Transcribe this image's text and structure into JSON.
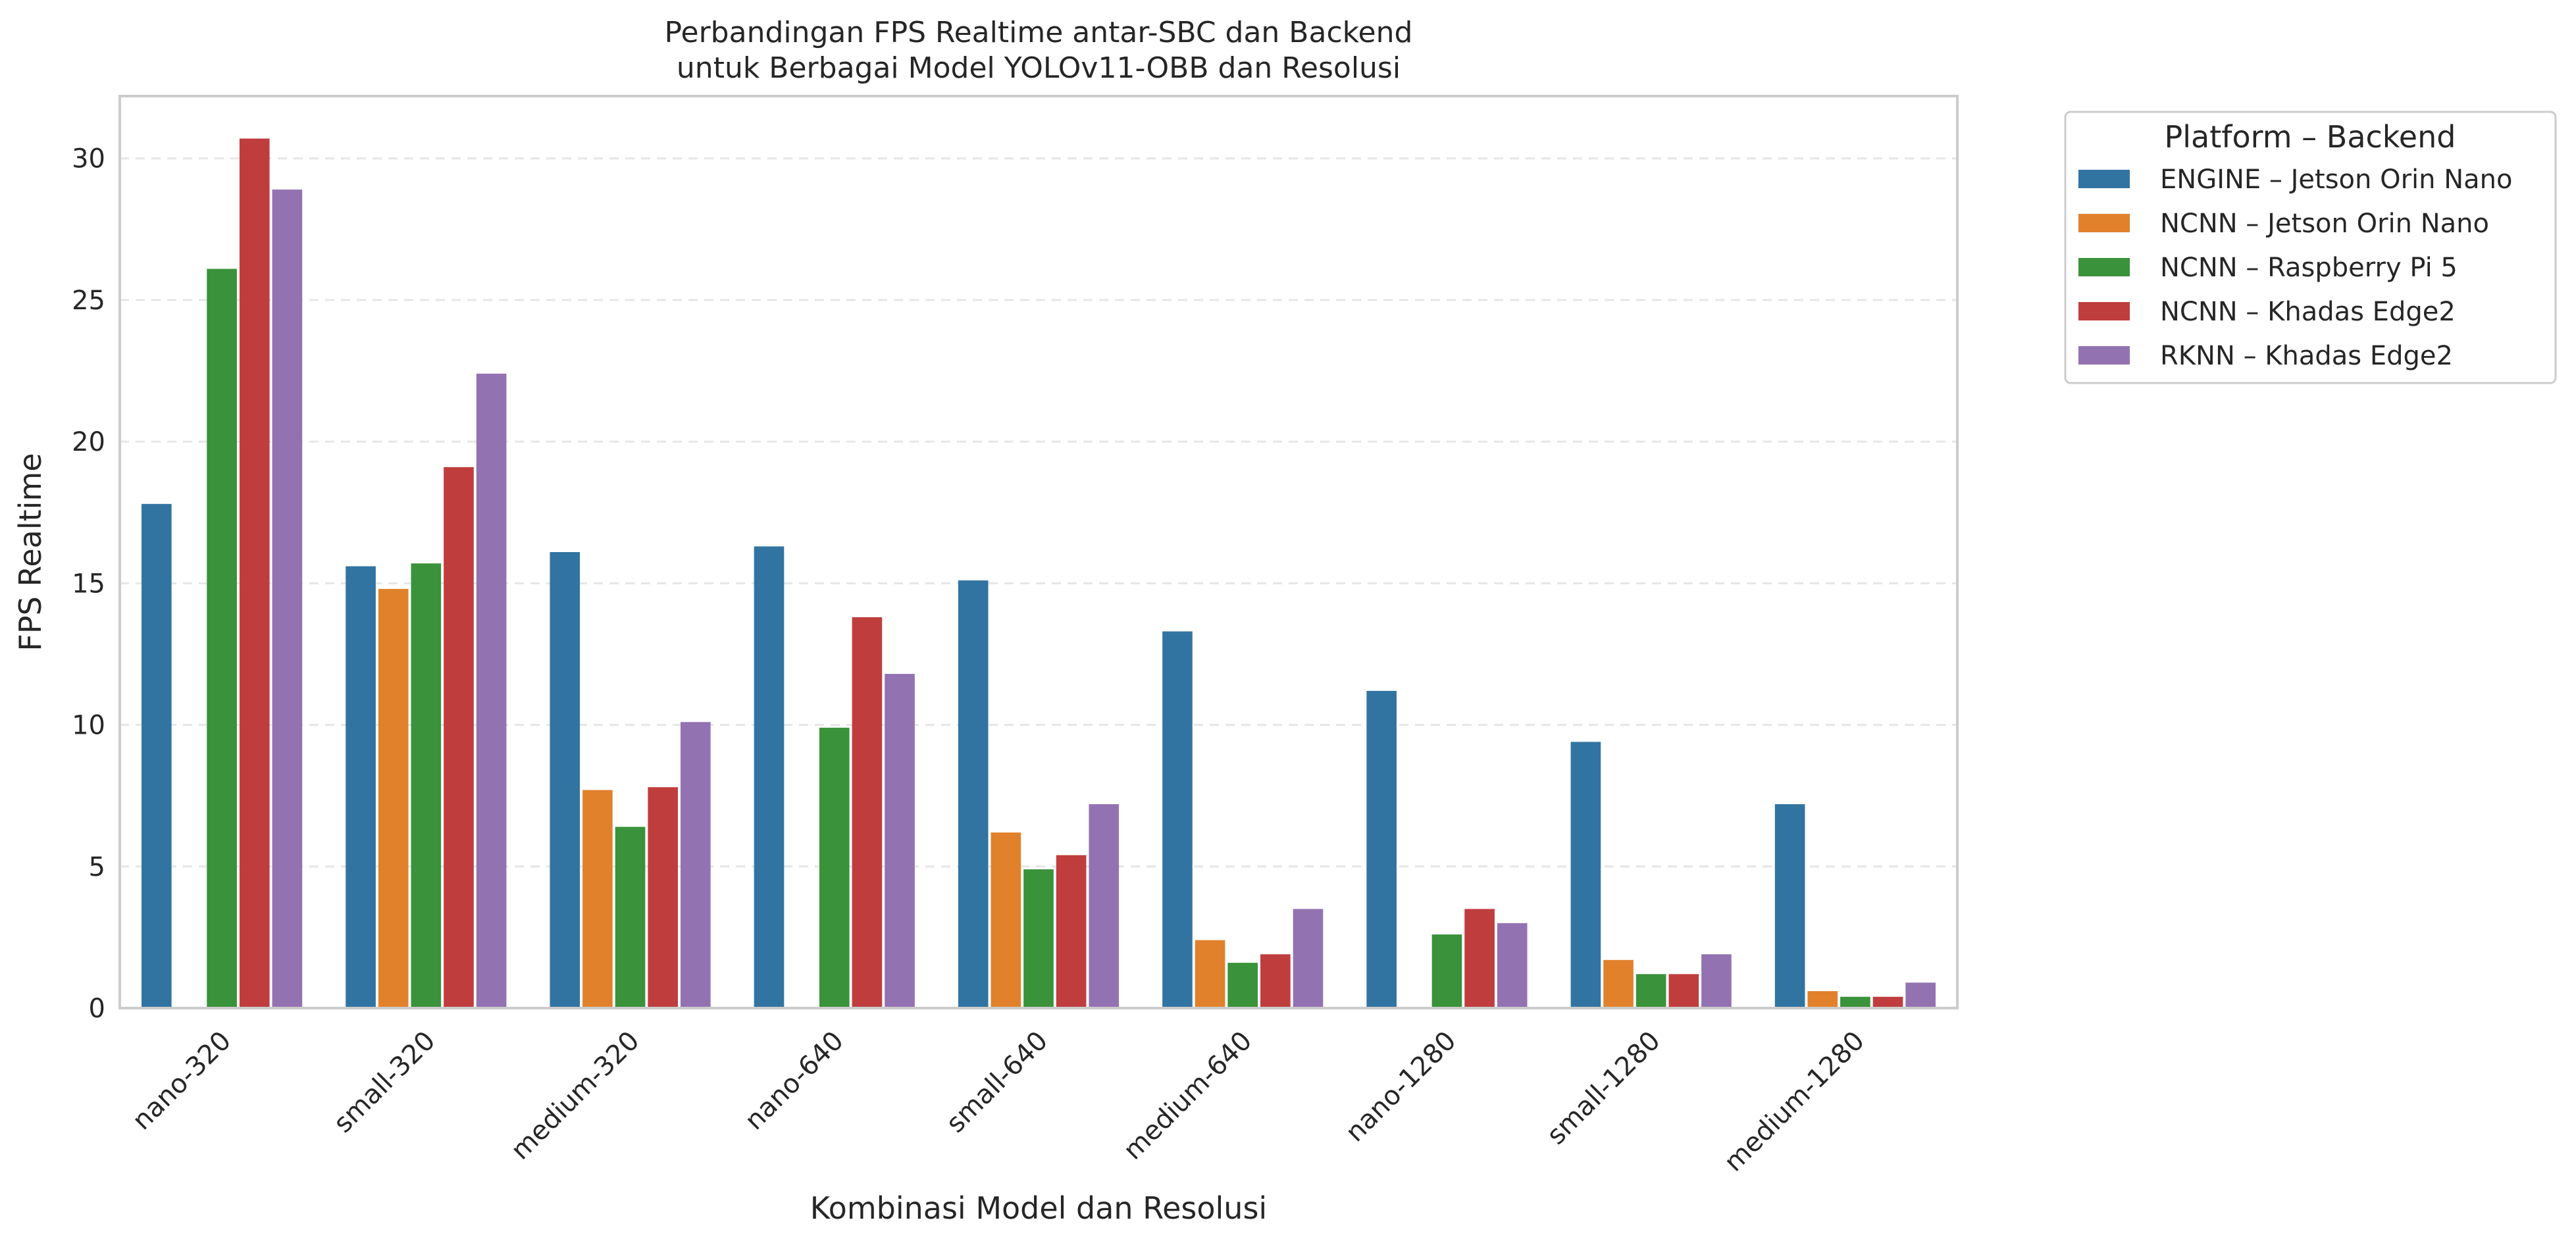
{
  "chart_data": {
    "type": "bar",
    "title_lines": [
      "Perbandingan FPS Realtime antar-SBC dan Backend",
      "untuk Berbagai Model YOLOv11-OBB dan Resolusi"
    ],
    "xlabel": "Kombinasi Model dan Resolusi",
    "ylabel": "FPS Realtime",
    "ylim": [
      0,
      32.2
    ],
    "yticks": [
      0,
      5,
      10,
      15,
      20,
      25,
      30
    ],
    "grid": "horizontal dashed",
    "legend_title": "Platform – Backend",
    "legend_placement": "outside right, top",
    "categories": [
      "nano-320",
      "small-320",
      "medium-320",
      "nano-640",
      "small-640",
      "medium-640",
      "nano-1280",
      "small-1280",
      "medium-1280"
    ],
    "series": [
      {
        "name": "ENGINE – Jetson Orin Nano",
        "color": "#3274a1",
        "values": [
          17.8,
          15.6,
          16.1,
          16.3,
          15.1,
          13.3,
          11.2,
          9.4,
          7.2
        ]
      },
      {
        "name": "NCNN – Jetson Orin Nano",
        "color": "#e1812c",
        "values": [
          null,
          14.8,
          7.7,
          null,
          6.2,
          2.4,
          null,
          1.7,
          0.6
        ]
      },
      {
        "name": "NCNN – Raspberry Pi 5",
        "color": "#3a923a",
        "values": [
          26.1,
          15.7,
          6.4,
          9.9,
          4.9,
          1.6,
          2.6,
          1.2,
          0.4
        ]
      },
      {
        "name": "NCNN – Khadas Edge2",
        "color": "#c03d3e",
        "values": [
          30.7,
          19.1,
          7.8,
          13.8,
          5.4,
          1.9,
          3.5,
          1.2,
          0.4
        ]
      },
      {
        "name": "RKNN – Khadas Edge2",
        "color": "#9372b2",
        "values": [
          28.9,
          22.4,
          10.1,
          11.8,
          7.2,
          3.5,
          3.0,
          1.9,
          0.9
        ]
      }
    ]
  }
}
